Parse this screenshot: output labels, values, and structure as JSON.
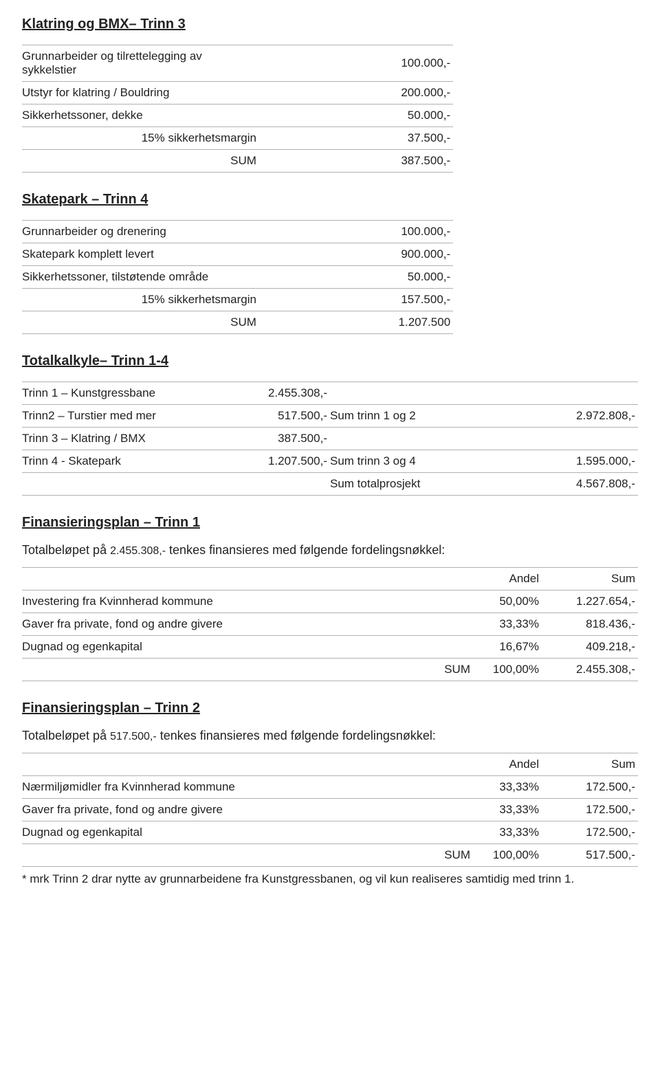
{
  "colors": {
    "text": "#222222",
    "border": "#b0b0b0",
    "background": "#ffffff"
  },
  "typography": {
    "body_fontsize": 17,
    "title_fontsize": 20,
    "intro_fontsize": 18
  },
  "section1": {
    "title": "Klatring og BMX– Trinn 3",
    "rows": [
      {
        "label": "Grunnarbeider og tilrettelegging av sykkelstier",
        "value": "100.000,-"
      },
      {
        "label": "Utstyr for klatring / Bouldring",
        "value": "200.000,-"
      },
      {
        "label": "Sikkerhetssoner, dekke",
        "value": "50.000,-"
      },
      {
        "label": "15% sikkerhetsmargin",
        "value": "37.500,-",
        "rightLabel": true
      },
      {
        "label": "SUM",
        "value": "387.500,-",
        "rightLabel": true
      }
    ]
  },
  "section2": {
    "title": "Skatepark – Trinn 4",
    "rows": [
      {
        "label": "Grunnarbeider og drenering",
        "value": "100.000,-"
      },
      {
        "label": "Skatepark komplett levert",
        "value": "900.000,-"
      },
      {
        "label": "Sikkerhetssoner, tilstøtende område",
        "value": "50.000,-"
      },
      {
        "label": "15% sikkerhetsmargin",
        "value": "157.500,-",
        "rightLabel": true
      },
      {
        "label": "SUM",
        "value": "1.207.500",
        "rightLabel": true
      }
    ]
  },
  "section3": {
    "title": "Totalkalkyle– Trinn 1-4",
    "rows": [
      {
        "c1": "Trinn 1 – Kunstgressbane",
        "c2": "2.455.308,-",
        "c3": "",
        "c4": ""
      },
      {
        "c1": "Trinn2 – Turstier med mer",
        "c2": "517.500,-",
        "c3": "Sum trinn 1 og 2",
        "c4": "2.972.808,-"
      },
      {
        "c1": "Trinn 3 – Klatring / BMX",
        "c2": "387.500,-",
        "c3": "",
        "c4": ""
      },
      {
        "c1": "Trinn 4 - Skatepark",
        "c2": "1.207.500,-",
        "c3": "Sum trinn 3 og 4",
        "c4": "1.595.000,-"
      },
      {
        "c1": "",
        "c2": "",
        "c3": "Sum totalprosjekt",
        "c4": "4.567.808,-"
      }
    ]
  },
  "section4": {
    "title": "Finansieringsplan – Trinn 1",
    "intro_prefix": "Totalbeløpet på ",
    "intro_amount": "2.455.308,-",
    "intro_suffix": " tenkes finansieres med følgende fordelingsnøkkel:",
    "headers": {
      "share": "Andel",
      "sum": "Sum"
    },
    "rows": [
      {
        "label": "Investering fra Kvinnherad kommune",
        "share": "50,00%",
        "sum": "1.227.654,-"
      },
      {
        "label": "Gaver fra private, fond og andre givere",
        "share": "33,33%",
        "sum": "818.436,-"
      },
      {
        "label": "Dugnad og egenkapital",
        "share": "16,67%",
        "sum": "409.218,-"
      },
      {
        "label": "SUM",
        "share": "100,00%",
        "sum": "2.455.308,-",
        "rightLabel": true
      }
    ]
  },
  "section5": {
    "title": "Finansieringsplan – Trinn 2",
    "intro_prefix": "Totalbeløpet på ",
    "intro_amount": "517.500,-",
    "intro_suffix": " tenkes finansieres med følgende fordelingsnøkkel:",
    "headers": {
      "share": "Andel",
      "sum": "Sum"
    },
    "rows": [
      {
        "label": "Nærmiljømidler fra Kvinnherad kommune",
        "share": "33,33%",
        "sum": "172.500,-"
      },
      {
        "label": "Gaver fra private, fond og andre givere",
        "share": "33,33%",
        "sum": "172.500,-"
      },
      {
        "label": "Dugnad og egenkapital",
        "share": "33,33%",
        "sum": "172.500,-"
      },
      {
        "label": "SUM",
        "share": "100,00%",
        "sum": "517.500,-",
        "rightLabel": true
      }
    ],
    "footnote": "* mrk Trinn 2 drar nytte av grunnarbeidene fra Kunstgressbanen, og vil kun realiseres samtidig med trinn 1."
  }
}
